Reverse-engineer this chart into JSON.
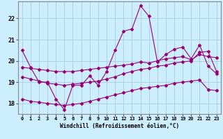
{
  "background_color": "#cceeff",
  "grid_color": "#aaccdd",
  "line_color": "#990077",
  "xlabel": "Windchill (Refroidissement éolien,°C)",
  "xlim": [
    -0.5,
    23.5
  ],
  "ylim": [
    17.5,
    22.8
  ],
  "yticks": [
    18,
    19,
    20,
    21,
    22
  ],
  "xticks": [
    0,
    1,
    2,
    3,
    4,
    5,
    6,
    7,
    8,
    9,
    10,
    11,
    12,
    13,
    14,
    15,
    16,
    17,
    18,
    19,
    20,
    21,
    22,
    23
  ],
  "line1_x": [
    0,
    1,
    2,
    3,
    4,
    5,
    6,
    7,
    8,
    9,
    10,
    11,
    12,
    13,
    14,
    15,
    16,
    17,
    18,
    19,
    20,
    21,
    22,
    23
  ],
  "line1_y": [
    20.5,
    19.7,
    19.0,
    19.0,
    18.2,
    17.7,
    18.85,
    18.85,
    19.3,
    18.85,
    19.5,
    20.5,
    21.4,
    21.5,
    22.6,
    22.1,
    19.95,
    20.3,
    20.55,
    20.65,
    20.1,
    20.75,
    19.75,
    19.4
  ],
  "line2_x": [
    0,
    1,
    2,
    3,
    4,
    5,
    6,
    7,
    8,
    9,
    10,
    11,
    12,
    13,
    14,
    15,
    16,
    17,
    18,
    19,
    20,
    21,
    22,
    23
  ],
  "line2_y": [
    19.7,
    19.65,
    19.6,
    19.55,
    19.5,
    19.5,
    19.5,
    19.55,
    19.6,
    19.65,
    19.7,
    19.75,
    19.8,
    19.85,
    19.95,
    19.9,
    20.0,
    20.1,
    20.15,
    20.2,
    20.05,
    20.3,
    20.2,
    20.15
  ],
  "line3_x": [
    0,
    1,
    2,
    3,
    4,
    5,
    6,
    7,
    8,
    9,
    10,
    11,
    12,
    13,
    14,
    15,
    16,
    17,
    18,
    19,
    20,
    21,
    22,
    23
  ],
  "line3_y": [
    19.25,
    19.15,
    19.05,
    18.95,
    18.9,
    18.85,
    18.9,
    18.95,
    19.0,
    19.05,
    19.15,
    19.25,
    19.4,
    19.5,
    19.6,
    19.65,
    19.75,
    19.8,
    19.9,
    19.95,
    20.0,
    20.4,
    20.45,
    19.5
  ],
  "line4_x": [
    0,
    1,
    2,
    3,
    4,
    5,
    6,
    7,
    8,
    9,
    10,
    11,
    12,
    13,
    14,
    15,
    16,
    17,
    18,
    19,
    20,
    21,
    22,
    23
  ],
  "line4_y": [
    18.2,
    18.1,
    18.05,
    18.0,
    17.95,
    17.9,
    17.95,
    18.0,
    18.1,
    18.2,
    18.3,
    18.4,
    18.5,
    18.6,
    18.7,
    18.75,
    18.8,
    18.85,
    18.95,
    19.0,
    19.05,
    19.1,
    18.65,
    18.6
  ]
}
